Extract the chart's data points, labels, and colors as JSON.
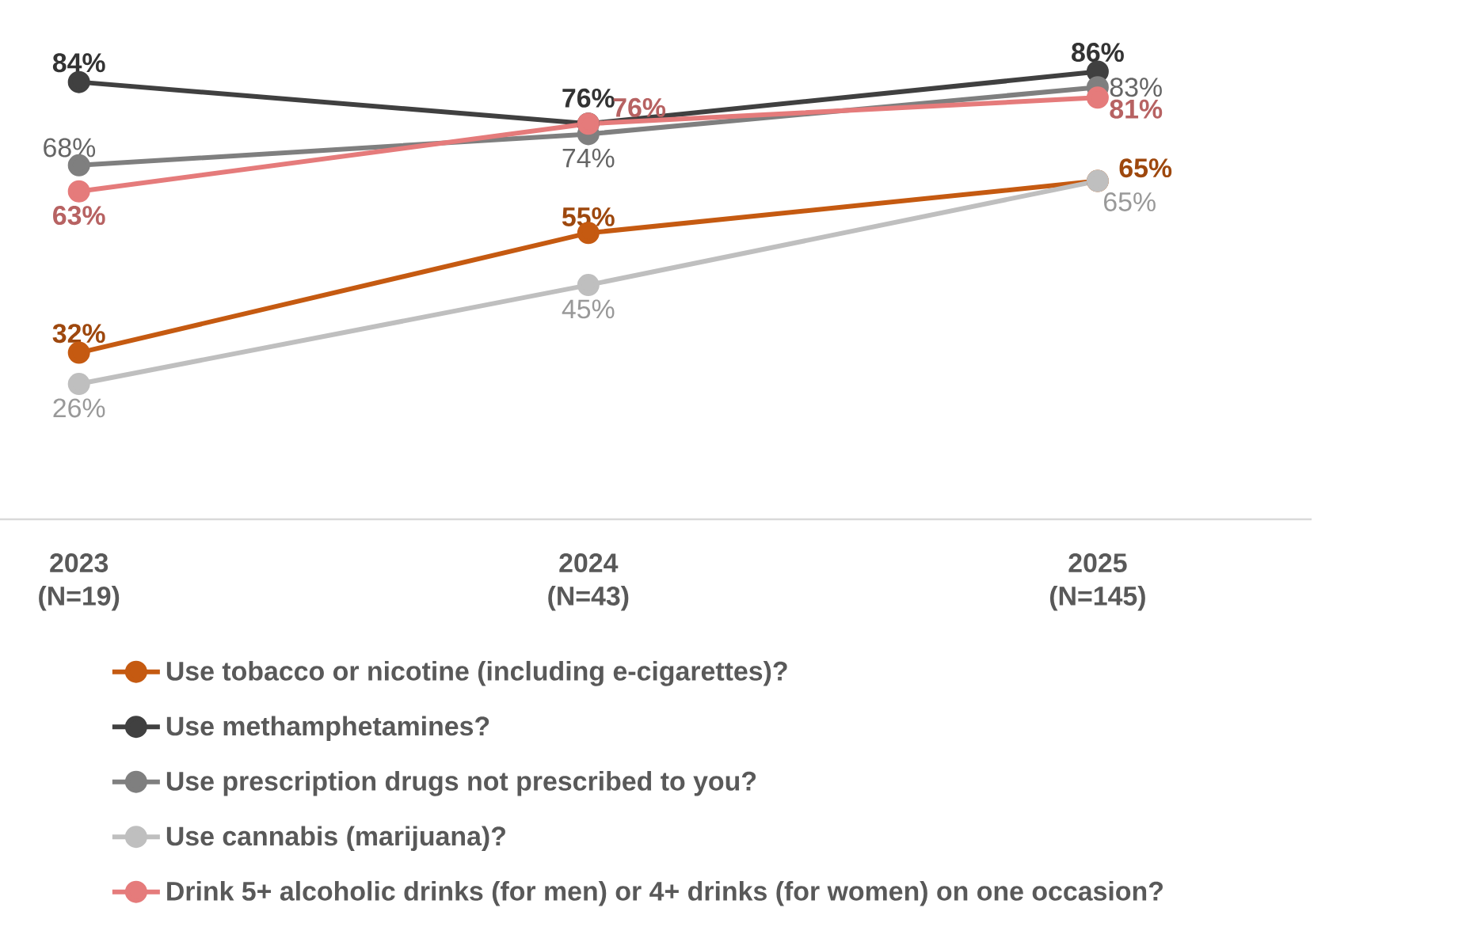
{
  "chart_data": {
    "type": "line",
    "categories": [
      "2023 (N=19)",
      "2024 (N=43)",
      "2025 (N=145)"
    ],
    "marker": "circle",
    "legend": "bottom",
    "data_labels": true,
    "series": [
      {
        "name": "Use tobacco or nicotine (including e-cigarettes)?",
        "color": "#c55a11",
        "values": [
          32,
          55,
          65
        ],
        "value_labels": [
          "32%",
          "55%",
          "65%"
        ]
      },
      {
        "name": "Use methamphetamines?",
        "color": "#404040",
        "values": [
          84,
          76,
          86
        ],
        "value_labels": [
          "84%",
          "76%",
          "86%"
        ]
      },
      {
        "name": "Use prescription drugs not prescribed to you?",
        "color": "#7f7f7f",
        "values": [
          68,
          74,
          83
        ],
        "value_labels": [
          "68%",
          "74%",
          "83%"
        ]
      },
      {
        "name": "Use cannabis (marijuana)?",
        "color": "#bfbfbf",
        "values": [
          26,
          45,
          65
        ],
        "value_labels": [
          "26%",
          "45%",
          "65%"
        ]
      },
      {
        "name": "Drink 5+ alcoholic drinks (for men) or 4+ drinks (for women) on one occasion?",
        "color": "#e57b7b",
        "values": [
          63,
          76,
          81
        ],
        "value_labels": [
          "63%",
          "76%",
          "81%"
        ]
      }
    ]
  }
}
